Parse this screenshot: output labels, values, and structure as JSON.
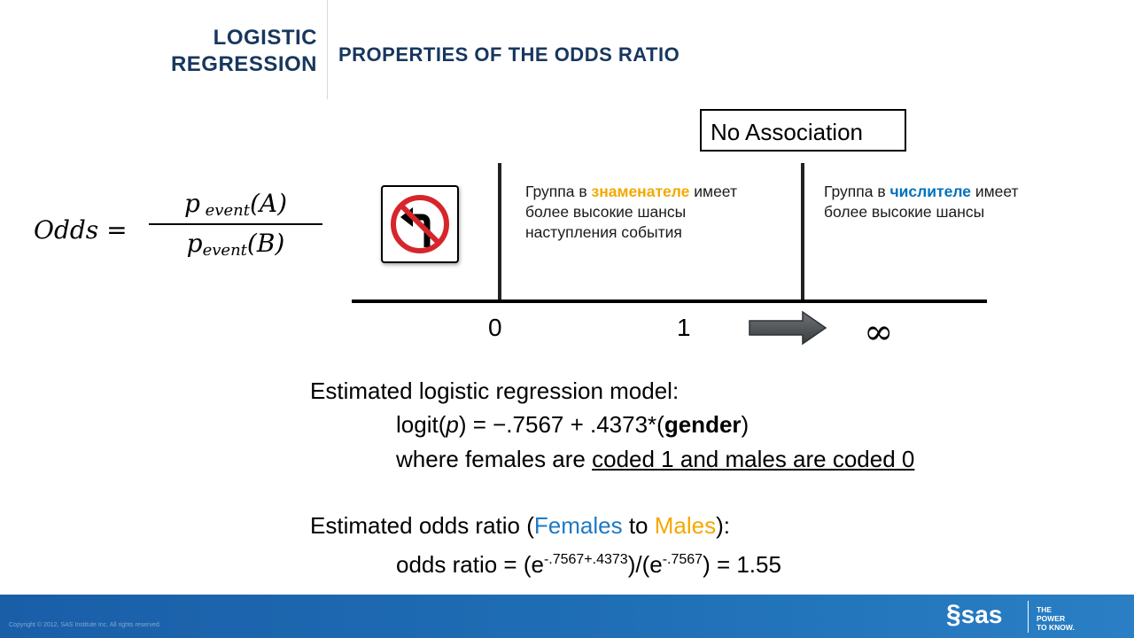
{
  "header": {
    "section_line1": "LOGISTIC",
    "section_line2": "REGRESSION",
    "slide_title": "PROPERTIES OF THE ODDS RATIO"
  },
  "formula": {
    "lhs": "Odds =",
    "numerator_p": "p",
    "numerator_sub": "event",
    "numerator_arg": "(A)",
    "denominator_p": "p",
    "denominator_sub": "event",
    "denominator_arg": "(B)"
  },
  "number_line": {
    "no_association_label": "No Association",
    "tick_0": "0",
    "tick_1": "1",
    "infinity": "∞",
    "left_group": {
      "prefix": "Группа в ",
      "highlight": "знаменателе",
      "rest": " имеет более высокие шансы наступления события"
    },
    "right_group": {
      "prefix": "Группа в ",
      "highlight": "числителе",
      "rest": " имеет более высокие шансы"
    }
  },
  "model": {
    "heading": "Estimated logistic regression model:",
    "logit_prefix": "logit(",
    "logit_p": "p",
    "logit_mid": ") = −.7567 + .4373*(",
    "logit_var": "gender",
    "logit_suffix": ")",
    "coding_prefix": "where females are ",
    "coding_underlined": "coded 1 and males are coded 0"
  },
  "odds_ratio": {
    "heading_prefix": "Estimated odds ratio (",
    "females": "Females",
    "to": " to ",
    "males": "Males",
    "heading_suffix": "):",
    "formula_prefix": "odds ratio = (e",
    "exp1": "-.7567+.4373",
    "formula_mid": ")/(e",
    "exp2": "-.7567",
    "formula_suffix": ") = 1.55"
  },
  "footer": {
    "copyright": "Copyright © 2012, SAS Institute Inc. All rights reserved.",
    "logo": "sas",
    "tagline1": "THE",
    "tagline2": "POWER",
    "tagline3": "TO KNOW."
  },
  "colors": {
    "title": "#17375e",
    "highlight_orange": "#f4a800",
    "highlight_blue": "#0071bc",
    "footer_blue": "#1f6fb6"
  }
}
